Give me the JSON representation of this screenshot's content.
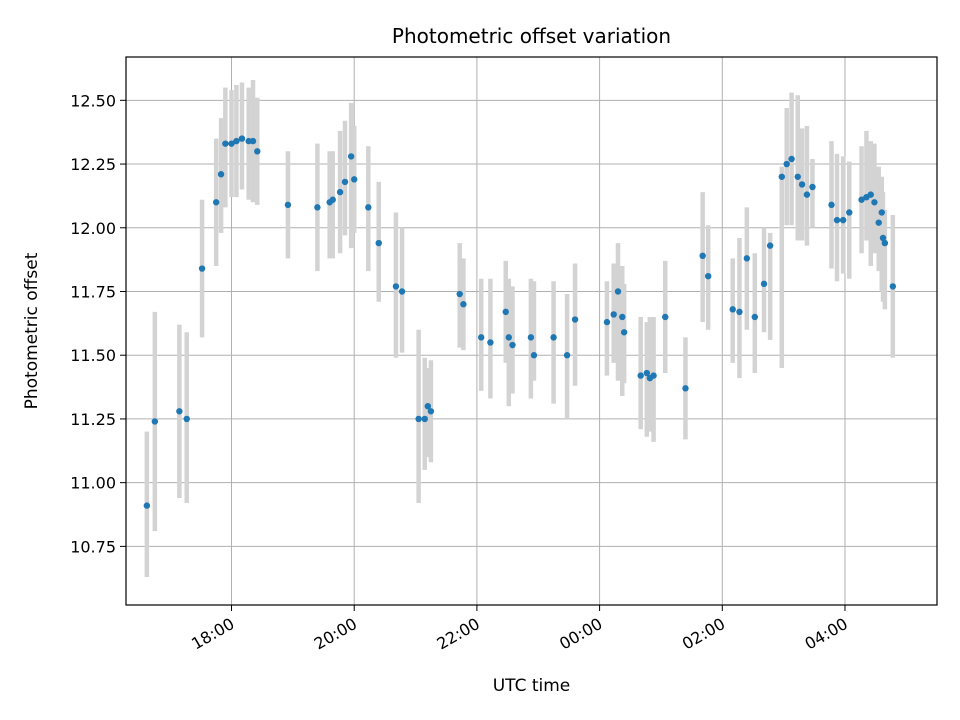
{
  "chart_data": {
    "type": "scatter",
    "title": "Photometric offset variation",
    "xlabel": "UTC time",
    "ylabel": "Photometric offset",
    "grid": true,
    "x_axis": {
      "kind": "time",
      "range_hours": [
        16.28,
        29.5
      ],
      "ticks": [
        {
          "hour": 18,
          "label": "18:00"
        },
        {
          "hour": 20,
          "label": "20:00"
        },
        {
          "hour": 22,
          "label": "22:00"
        },
        {
          "hour": 24,
          "label": "00:00"
        },
        {
          "hour": 26,
          "label": "02:00"
        },
        {
          "hour": 28,
          "label": "04:00"
        }
      ]
    },
    "y_axis": {
      "range": [
        10.52,
        12.67
      ],
      "ticks": [
        10.75,
        11.0,
        11.25,
        11.5,
        11.75,
        12.0,
        12.25,
        12.5
      ],
      "tick_labels": [
        "10.75",
        "11.00",
        "11.25",
        "11.50",
        "11.75",
        "12.00",
        "12.25",
        "12.50"
      ]
    },
    "colors": {
      "marker": "#1f77b4",
      "errorbar": "#d3d3d3",
      "grid": "#b0b0b0"
    },
    "series": [
      {
        "error_low": [
          10.63,
          10.81,
          10.94,
          10.92,
          11.57,
          11.85,
          11.98,
          12.08,
          12.12,
          12.12,
          12.15,
          12.11,
          12.1,
          12.09,
          11.88,
          11.83,
          11.88,
          11.88,
          11.9,
          11.97,
          11.92,
          11.98,
          11.83,
          11.71,
          11.49,
          11.51,
          10.92,
          11.05,
          11.1,
          11.08,
          11.53,
          11.52,
          11.36,
          11.33,
          11.47,
          11.3,
          11.35,
          11.33,
          11.4,
          11.31,
          11.25,
          11.38,
          11.42,
          11.47,
          11.4,
          11.34,
          11.39,
          11.21,
          11.18,
          11.2,
          11.16,
          11.43,
          11.17,
          11.63,
          11.6,
          11.47,
          11.41,
          11.6,
          11.43,
          11.59,
          11.56,
          11.45,
          12.01,
          12.01,
          11.95,
          11.95,
          11.93,
          12.0,
          11.84,
          11.79,
          11.82,
          11.8,
          11.9,
          11.95,
          11.85,
          11.9,
          11.83,
          11.75,
          11.71,
          11.68,
          11.49
        ],
        "error_high": [
          11.2,
          11.67,
          11.62,
          11.59,
          12.11,
          12.35,
          12.43,
          12.55,
          12.54,
          12.56,
          12.57,
          12.55,
          12.58,
          12.51,
          12.3,
          12.33,
          12.3,
          12.3,
          12.38,
          12.42,
          12.49,
          12.4,
          12.32,
          12.18,
          12.06,
          12.0,
          11.6,
          11.49,
          11.45,
          11.48,
          11.94,
          11.88,
          11.8,
          11.8,
          11.87,
          11.8,
          11.77,
          11.8,
          11.79,
          11.79,
          11.74,
          11.86,
          11.79,
          11.86,
          11.94,
          11.85,
          11.78,
          11.65,
          11.63,
          11.65,
          11.65,
          11.87,
          11.57,
          12.14,
          12.01,
          11.88,
          11.96,
          12.08,
          11.9,
          12.0,
          11.98,
          12.24,
          12.47,
          12.53,
          12.52,
          12.39,
          12.4,
          12.27,
          12.34,
          12.29,
          12.28,
          12.26,
          12.32,
          12.38,
          12.34,
          12.33,
          12.24,
          12.2,
          12.14,
          12.07,
          12.05
        ],
        "x_hours": [
          16.62,
          16.75,
          17.15,
          17.27,
          17.52,
          17.75,
          17.83,
          17.9,
          18.0,
          18.08,
          18.17,
          18.28,
          18.35,
          18.42,
          18.92,
          19.4,
          19.6,
          19.65,
          19.77,
          19.85,
          19.95,
          20.0,
          20.23,
          20.4,
          20.68,
          20.78,
          21.05,
          21.15,
          21.2,
          21.25,
          21.72,
          21.78,
          22.07,
          22.22,
          22.47,
          22.52,
          22.58,
          22.88,
          22.93,
          23.25,
          23.47,
          23.6,
          24.12,
          24.23,
          24.3,
          24.37,
          24.4,
          24.67,
          24.77,
          24.82,
          24.88,
          25.07,
          25.4,
          25.68,
          25.77,
          26.17,
          26.28,
          26.4,
          26.53,
          26.68,
          26.78,
          26.97,
          27.05,
          27.13,
          27.23,
          27.3,
          27.38,
          27.47,
          27.78,
          27.87,
          27.97,
          28.07,
          28.27,
          28.35,
          28.42,
          28.48,
          28.55,
          28.6,
          28.62,
          28.65,
          28.78
        ],
        "y": [
          10.91,
          11.24,
          11.28,
          11.25,
          11.84,
          12.1,
          12.21,
          12.33,
          12.33,
          12.34,
          12.35,
          12.34,
          12.34,
          12.3,
          12.09,
          12.08,
          12.1,
          12.11,
          12.14,
          12.18,
          12.28,
          12.19,
          12.08,
          11.94,
          11.77,
          11.75,
          11.25,
          11.25,
          11.3,
          11.28,
          11.74,
          11.7,
          11.57,
          11.55,
          11.67,
          11.57,
          11.54,
          11.57,
          11.5,
          11.57,
          11.5,
          11.64,
          11.63,
          11.66,
          11.75,
          11.65,
          11.59,
          11.42,
          11.43,
          11.41,
          11.42,
          11.65,
          11.37,
          11.89,
          11.81,
          11.68,
          11.67,
          11.88,
          11.65,
          11.78,
          11.93,
          12.2,
          12.25,
          12.27,
          12.2,
          12.17,
          12.13,
          12.16,
          12.09,
          12.03,
          12.03,
          12.06,
          12.11,
          12.12,
          12.13,
          12.1,
          12.02,
          12.06,
          11.96,
          11.94,
          11.77
        ]
      }
    ]
  }
}
